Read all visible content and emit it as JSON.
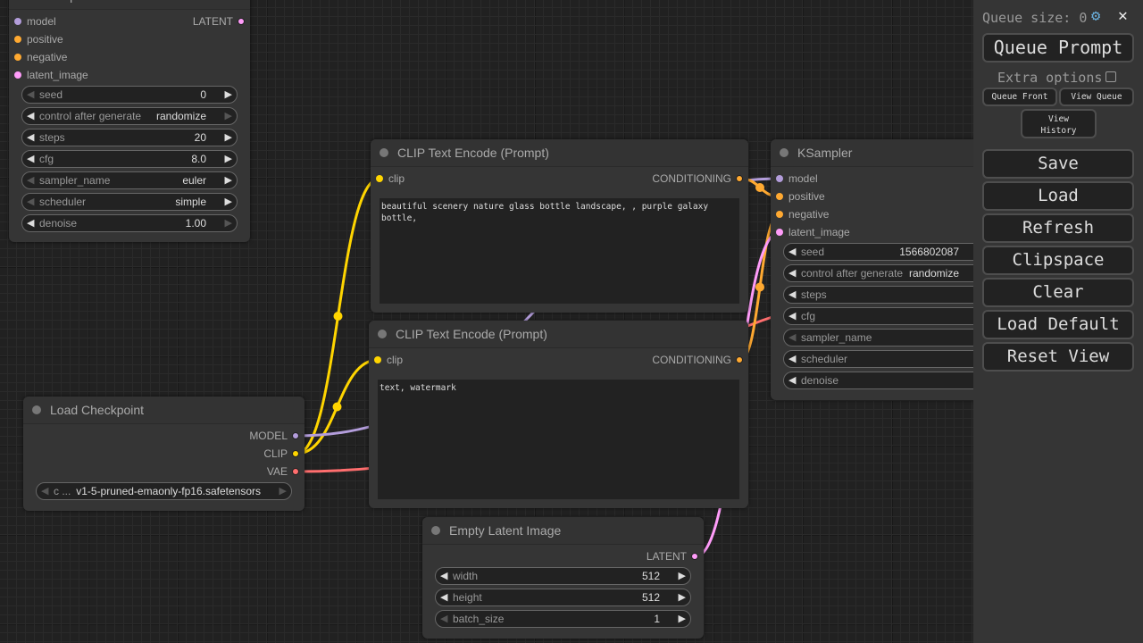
{
  "colors": {
    "model": "#b39ddb",
    "clip": "#ffd500",
    "vae": "#ff6e6e",
    "latent": "#ff9cf9",
    "conditioning": "#ffa931"
  },
  "nodes": {
    "ksampler_top": {
      "title": "KSampler",
      "inputs": [
        {
          "label": "model",
          "type": "model"
        },
        {
          "label": "positive",
          "type": "conditioning"
        },
        {
          "label": "negative",
          "type": "conditioning"
        },
        {
          "label": "latent_image",
          "type": "latent"
        }
      ],
      "outputs": [
        {
          "label": "LATENT",
          "type": "latent"
        }
      ],
      "widgets": [
        {
          "label": "seed",
          "value": "0"
        },
        {
          "label": "control after generate",
          "value": "randomize"
        },
        {
          "label": "steps",
          "value": "20"
        },
        {
          "label": "cfg",
          "value": "8.0"
        },
        {
          "label": "sampler_name",
          "value": "euler"
        },
        {
          "label": "scheduler",
          "value": "simple"
        },
        {
          "label": "denoise",
          "value": "1.00"
        }
      ]
    },
    "clip_pos": {
      "title": "CLIP Text Encode (Prompt)",
      "inputs": [
        {
          "label": "clip",
          "type": "clip"
        }
      ],
      "outputs": [
        {
          "label": "CONDITIONING",
          "type": "conditioning"
        }
      ],
      "text": "beautiful scenery nature glass bottle landscape, , purple galaxy bottle,"
    },
    "clip_neg": {
      "title": "CLIP Text Encode (Prompt)",
      "inputs": [
        {
          "label": "clip",
          "type": "clip"
        }
      ],
      "outputs": [
        {
          "label": "CONDITIONING",
          "type": "conditioning"
        }
      ],
      "text": "text, watermark"
    },
    "checkpoint": {
      "title": "Load Checkpoint",
      "inputs": [],
      "outputs": [
        {
          "label": "MODEL",
          "type": "model"
        },
        {
          "label": "CLIP",
          "type": "clip"
        },
        {
          "label": "VAE",
          "type": "vae"
        }
      ],
      "widgets": [
        {
          "label": "c ...",
          "value": "v1-5-pruned-emaonly-fp16.safetensors"
        }
      ]
    },
    "latent": {
      "title": "Empty Latent Image",
      "inputs": [],
      "outputs": [
        {
          "label": "LATENT",
          "type": "latent"
        }
      ],
      "widgets": [
        {
          "label": "width",
          "value": "512"
        },
        {
          "label": "height",
          "value": "512"
        },
        {
          "label": "batch_size",
          "value": "1"
        }
      ]
    },
    "ksampler": {
      "title": "KSampler",
      "inputs": [
        {
          "label": "model",
          "type": "model"
        },
        {
          "label": "positive",
          "type": "conditioning"
        },
        {
          "label": "negative",
          "type": "conditioning"
        },
        {
          "label": "latent_image",
          "type": "latent"
        }
      ],
      "outputs": [],
      "widgets": [
        {
          "label": "seed",
          "value": "1566802087"
        },
        {
          "label": "control after generate",
          "value": "randomize"
        },
        {
          "label": "steps",
          "value": ""
        },
        {
          "label": "cfg",
          "value": ""
        },
        {
          "label": "sampler_name",
          "value": ""
        },
        {
          "label": "scheduler",
          "value": ""
        },
        {
          "label": "denoise",
          "value": ""
        }
      ]
    }
  },
  "panel": {
    "queue_size_label": "Queue size: 0",
    "settings_icon": "gear-icon",
    "close_icon": "✕",
    "queue_prompt": "Queue Prompt",
    "extra_options": "Extra options",
    "queue_front": "Queue Front",
    "view_queue": "View Queue",
    "view_history": "View History",
    "buttons": [
      "Save",
      "Load",
      "Refresh",
      "Clipspace",
      "Clear",
      "Load Default",
      "Reset View"
    ]
  }
}
